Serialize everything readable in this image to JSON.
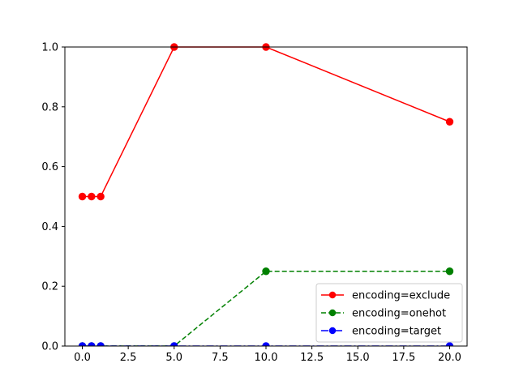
{
  "chart_data": {
    "type": "line",
    "xlim": [
      -0.95,
      20.95
    ],
    "ylim": [
      0,
      1.0
    ],
    "x_ticks": [
      "0.0",
      "2.5",
      "5.0",
      "7.5",
      "10.0",
      "12.5",
      "15.0",
      "17.5",
      "20.0"
    ],
    "x_tick_values": [
      0,
      2.5,
      5,
      7.5,
      10,
      12.5,
      15,
      17.5,
      20
    ],
    "y_ticks": [
      "0.0",
      "0.2",
      "0.4",
      "0.6",
      "0.8",
      "1.0"
    ],
    "y_tick_values": [
      0,
      0.2,
      0.4,
      0.6,
      0.8,
      1.0
    ],
    "grid": false,
    "legend_position": "lower-right",
    "series": [
      {
        "name": "encoding=exclude",
        "color": "#ff0000",
        "line_style": "solid",
        "marker": "circle",
        "x": [
          0,
          0.5,
          1,
          5,
          10,
          20
        ],
        "y": [
          0.5,
          0.5,
          0.5,
          1.0,
          1.0,
          0.75
        ]
      },
      {
        "name": "encoding=onehot",
        "color": "#008000",
        "line_style": "dashed",
        "marker": "circle",
        "x": [
          0,
          0.5,
          1,
          5,
          10,
          20
        ],
        "y": [
          0,
          0,
          0,
          0,
          0.25,
          0.25
        ]
      },
      {
        "name": "encoding=target",
        "color": "#0000ff",
        "line_style": "dashdot",
        "marker": "circle",
        "x": [
          0,
          0.5,
          1,
          5,
          10,
          20
        ],
        "y": [
          0,
          0,
          0,
          0,
          0,
          0
        ]
      }
    ]
  }
}
